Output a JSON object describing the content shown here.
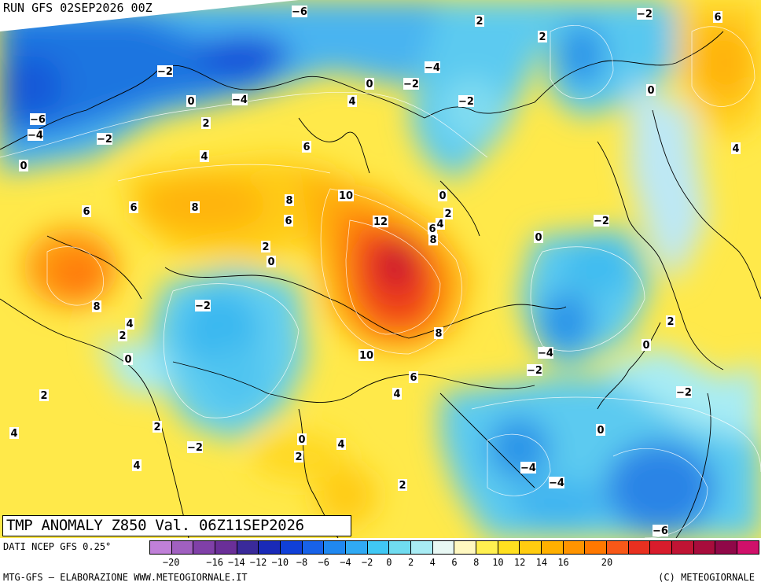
{
  "header": {
    "run_label": "RUN GFS 02SEP2026 00Z"
  },
  "map": {
    "title": "TMP ANOMALY Z850 Val. 06Z11SEP2026",
    "variable": "850 hPa temperature anomaly",
    "contour_labels": [
      "-6",
      "-2",
      "2",
      "6",
      "-2",
      "-4",
      "-2",
      "0",
      "-2",
      "-4",
      "0",
      "-4",
      "4",
      "-2",
      "-6",
      "-4",
      "-2",
      "2",
      "6",
      "0",
      "4",
      "0",
      "4",
      "6",
      "8",
      "8",
      "6",
      "10",
      "0",
      "2",
      "12",
      "4",
      "6",
      "8",
      "2",
      "0",
      "-2",
      "0",
      "-2",
      "8",
      "4",
      "2",
      "0",
      "2",
      "4",
      "10",
      "6",
      "-4",
      "-2",
      "2",
      "0",
      "-2",
      "8",
      "4",
      "2",
      "0",
      "2",
      "4",
      "-2",
      "0",
      "4",
      "2",
      "-4",
      "-4",
      "-6"
    ]
  },
  "legend": {
    "source": "DATI NCEP GFS 0.25°",
    "scale_values": [
      "-20",
      "-18",
      "-16",
      "-14",
      "-12",
      "-10",
      "-8",
      "-6",
      "-4",
      "-2",
      "0",
      "2",
      "4",
      "6",
      "8",
      "10",
      "12",
      "14",
      "16",
      "18",
      "20"
    ],
    "tick_labels": [
      "-20",
      "-16",
      "-14",
      "-12",
      "-10",
      "-8",
      "-6",
      "-4",
      "-2",
      "0",
      "2",
      "4",
      "6",
      "8",
      "10",
      "12",
      "14",
      "16",
      "20"
    ],
    "colors": [
      "#c080d8",
      "#a060c0",
      "#8040a8",
      "#6a2f98",
      "#3a2a9a",
      "#1a2ab8",
      "#1040d8",
      "#1862e8",
      "#2088f0",
      "#30aaf4",
      "#40c8f4",
      "#70dcf0",
      "#a8ecf4",
      "#e8f8f4",
      "#fff8c0",
      "#fff050",
      "#ffe020",
      "#ffcc10",
      "#ffb000",
      "#ff9400",
      "#ff7800",
      "#f85818",
      "#e83020",
      "#d81c2c",
      "#c01434",
      "#a80c3c",
      "#900848",
      "#d0106a"
    ]
  },
  "footer": {
    "left": "MTG-GFS — ELABORAZIONE WWW.METEOGIORNALE.IT",
    "right": "(C) METEOGIORNALE"
  }
}
